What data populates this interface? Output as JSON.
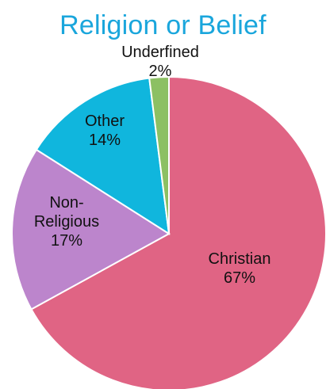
{
  "chart_data": {
    "type": "pie",
    "title": "Religion or Belief",
    "slices": [
      {
        "label": "Christian",
        "label_lines": [
          "Christian"
        ],
        "value": 67,
        "value_label": "67%",
        "color": "#e06484"
      },
      {
        "label": "Non-Religious",
        "label_lines": [
          "Non-",
          "Religious"
        ],
        "value": 17,
        "value_label": "17%",
        "color": "#bc85cc"
      },
      {
        "label": "Other",
        "label_lines": [
          "Other"
        ],
        "value": 14,
        "value_label": "14%",
        "color": "#10b6dd"
      },
      {
        "label": "Underfined",
        "label_lines": [
          "Underfined"
        ],
        "value": 2,
        "value_label": "2%",
        "color": "#8cc063"
      }
    ],
    "start_angle_deg": 0,
    "direction": "clockwise",
    "legend": "none"
  }
}
